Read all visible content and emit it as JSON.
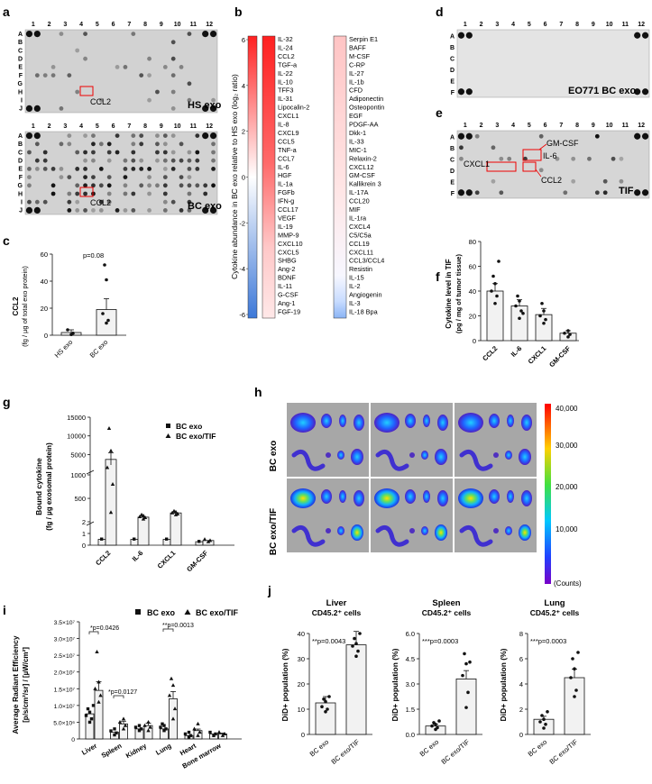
{
  "panel_labels": {
    "a": "a",
    "b": "b",
    "c": "c",
    "d": "d",
    "e": "e",
    "f": "f",
    "g": "g",
    "h": "h",
    "i": "i",
    "j": "j"
  },
  "array_cols": [
    "1",
    "2",
    "3",
    "4",
    "5",
    "6",
    "7",
    "8",
    "9",
    "10",
    "11",
    "12"
  ],
  "array_rows_a": [
    "A",
    "B",
    "C",
    "D",
    "E",
    "F",
    "G",
    "H",
    "I",
    "J"
  ],
  "array_rows_d": [
    "A",
    "B",
    "C",
    "D",
    "E",
    "F"
  ],
  "panel_a": {
    "top_label": "HS exo",
    "bottom_label": "BC exo",
    "ccl2": "CCL2"
  },
  "panel_d": {
    "label": "EO771 BC exo"
  },
  "panel_e": {
    "label": "TIF",
    "gmcsf": "GM-CSF",
    "il6": "IL-6",
    "cxcl1": "CXCL1",
    "ccl2": "CCL2"
  },
  "panel_b": {
    "ylabel": "Cytokine abundance in BC exo relative to HS exo (log₂ ratio)",
    "ticks": [
      "6",
      "4",
      "2",
      "0",
      "-2",
      "-4",
      "-6"
    ],
    "col1": [
      "IL-32",
      "IL-24",
      "CCL2",
      "TGF-a",
      "IL-22",
      "IL-10",
      "TFF3",
      "IL-31",
      "Lipocalin-2",
      "CXCL1",
      "IL-8",
      "CXCL9",
      "CCL5",
      "TNF-a",
      "CCL7",
      "IL-6",
      "HGF",
      "IL-1a",
      "FGFb",
      "IFN-g",
      "CCL17",
      "VEGF",
      "IL-19",
      "MMP-9",
      "CXCL10",
      "CXCL5",
      "SHBG",
      "Ang-2",
      "BDNF",
      "IL-11",
      "G-CSF",
      "Ang-1",
      "FGF-19"
    ],
    "col2": [
      "Serpin E1",
      "BAFF",
      "M-CSF",
      "C-RP",
      "IL-27",
      "IL-1b",
      "CFD",
      "Adiponectin",
      "Osteopontin",
      "EGF",
      "PDGF-AA",
      "Dkk-1",
      "IL-33",
      "MIC-1",
      "Relaxin-2",
      "CXCL12",
      "GM-CSF",
      "Kallikrein 3",
      "IL-17A",
      "CCL20",
      "MIF",
      "IL-1ra",
      "CXCL4",
      "C5/C5a",
      "CCL19",
      "CXCL11",
      "CCL3/CCL4",
      "Resistin",
      "IL-15",
      "IL-2",
      "Angiogenin",
      "IL-3",
      "IL-18 Bpa"
    ]
  },
  "panel_c": {
    "ylabel": "CCL2",
    "ylabel2": "(fg / µg of total exo protein)",
    "pval": "p=0.08",
    "xcats": [
      "HS exo",
      "BC exo"
    ]
  },
  "panel_f": {
    "ylabel": "Cytokine level in TIF",
    "ylabel2": "(pg / mg of tumor tissue)",
    "xcats": [
      "CCL2",
      "IL-6",
      "CXCL1",
      "GM-CSF"
    ]
  },
  "panel_g": {
    "ylabel": "Bound cytokine",
    "ylabel2": "(fg / µg exosomal protein)",
    "legend": [
      "BC exo",
      "BC exo/TIF"
    ],
    "xcats": [
      "CCL2",
      "IL-6",
      "CXCL1",
      "GM-CSF"
    ]
  },
  "panel_h": {
    "rows": [
      "BC exo",
      "BC exo/TIF"
    ],
    "scale_ticks": [
      "40,000",
      "30,000",
      "20,000",
      "10,000"
    ],
    "scale_unit": "(Counts)"
  },
  "panel_i": {
    "ylabel": "Average Radiant Efficiency",
    "ylabel2": "[p/s/cm²/sr] / [µW/cm²]",
    "legend": [
      "BC exo",
      "BC exo/TIF"
    ],
    "xcats": [
      "Liver",
      "Spleen",
      "Kidney",
      "Lung",
      "Heart",
      "Bone marrow"
    ],
    "pvals": [
      "*p=0.0426",
      "*p=0.0127",
      "**p=0.0013"
    ],
    "ytick_labels": [
      "0",
      "5.0×10⁶",
      "1.0×10⁷",
      "1.5×10⁷",
      "2.0×10⁷",
      "2.5×10⁷",
      "3.0×10⁷",
      "3.5×10⁷"
    ]
  },
  "panel_j": [
    {
      "title": "Liver",
      "subtitle": "CD45.2⁺ cells",
      "pval": "**p=0.0043",
      "ylabel": "DiD+ population (%)",
      "xcats": [
        "BC exo",
        "BC exo/TIF"
      ],
      "ticks": [
        "0",
        "10",
        "20",
        "30",
        "40"
      ]
    },
    {
      "title": "Spleen",
      "subtitle": "CD45.2⁺ cells",
      "pval": "***p=0.0003",
      "ylabel": "DiD+ population (%)",
      "xcats": [
        "BC exo",
        "BC exo/TIF"
      ],
      "ticks": [
        "0.0",
        "1.5",
        "3.0",
        "4.5",
        "6.0"
      ]
    },
    {
      "title": "Lung",
      "subtitle": "CD45.2⁺ cells",
      "pval": "***p=0.0003",
      "ylabel": "DiD+ population (%)",
      "xcats": [
        "BC exo",
        "BC exo/TIF"
      ],
      "ticks": [
        "0",
        "2",
        "4",
        "6",
        "8"
      ]
    }
  ],
  "chart_data": [
    {
      "type": "heatmap",
      "title": "",
      "ylabel": "Cytokine abundance in BC exo relative to HS exo (log2 ratio)",
      "ylim": [
        -6,
        6
      ],
      "colors": [
        "#3c78d8",
        "#ffffff",
        "#ff2a2a"
      ]
    },
    {
      "type": "bar",
      "categories": [
        "HS exo",
        "BC exo"
      ],
      "values": [
        2,
        19
      ],
      "ylim": [
        0,
        60
      ],
      "ylabel": "CCL2 (fg / µg of total exo protein)"
    },
    {
      "type": "bar",
      "categories": [
        "CCL2",
        "IL-6",
        "CXCL1",
        "GM-CSF"
      ],
      "values": [
        40,
        28,
        21,
        6
      ],
      "ylim": [
        0,
        80
      ],
      "ylabel": "Cytokine level in TIF (pg / mg of tumor tissue)"
    },
    {
      "type": "bar",
      "categories": [
        "CCL2",
        "IL-6",
        "CXCL1",
        "GM-CSF"
      ],
      "series": [
        {
          "name": "BC exo",
          "values": [
            0.5,
            0.5,
            0.5,
            0.3
          ]
        },
        {
          "name": "BC exo/TIF",
          "values": [
            3700,
            100,
            190,
            0.4
          ]
        }
      ],
      "ylabel": "Bound cytokine (fg / µg exosomal protein)"
    },
    {
      "type": "bar",
      "categories": [
        "Liver",
        "Spleen",
        "Kidney",
        "Lung",
        "Heart",
        "Bone marrow"
      ],
      "series": [
        {
          "name": "BC exo",
          "values": [
            7500000.0,
            2000000.0,
            3000000.0,
            3000000.0,
            1000000.0,
            1500000.0
          ]
        },
        {
          "name": "BC exo/TIF",
          "values": [
            14500000.0,
            4500000.0,
            4000000.0,
            12000000.0,
            2500000.0,
            1500000.0
          ]
        }
      ],
      "ylim": [
        0,
        35000000.0
      ],
      "ylabel": "Average Radiant Efficiency"
    },
    {
      "type": "bar",
      "title": "Liver",
      "categories": [
        "BC exo",
        "BC exo/TIF"
      ],
      "values": [
        12.5,
        35.5
      ],
      "ylim": [
        0,
        40
      ]
    },
    {
      "type": "bar",
      "title": "Spleen",
      "categories": [
        "BC exo",
        "BC exo/TIF"
      ],
      "values": [
        0.5,
        3.3
      ],
      "ylim": [
        0,
        6
      ]
    },
    {
      "type": "bar",
      "title": "Lung",
      "categories": [
        "BC exo",
        "BC exo/TIF"
      ],
      "values": [
        1.2,
        4.5
      ],
      "ylim": [
        0,
        8
      ]
    }
  ]
}
